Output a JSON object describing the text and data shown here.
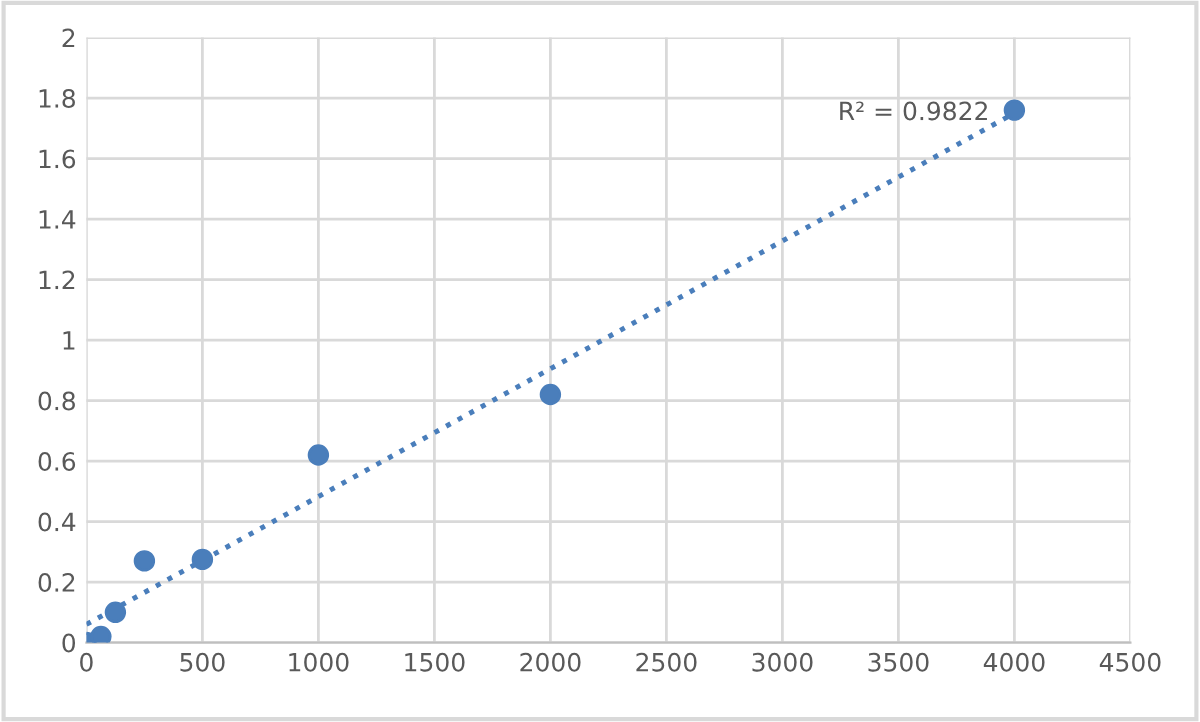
{
  "chart_data": {
    "type": "scatter",
    "x": [
      0,
      62.5,
      125,
      250,
      500,
      1000,
      2000,
      4000
    ],
    "series": [
      {
        "color": "#4a7ebb",
        "marker": "circle",
        "values": [
          0,
          0.02,
          0.1,
          0.27,
          0.275,
          0.62,
          0.82,
          1.76
        ]
      },
      {
        "type": "line",
        "color": "#4a7ebb",
        "line_style": "dotted",
        "marker": "none",
        "x": [
          0,
          4000
        ],
        "values": [
          0.06,
          1.75
        ]
      }
    ],
    "annotations": [
      "R² = 0.9822"
    ],
    "xlim": [
      0,
      4500
    ],
    "xticks": [
      0,
      500,
      1000,
      1500,
      2000,
      2500,
      3000,
      3500,
      4000,
      4500
    ],
    "ylim": [
      0,
      2
    ],
    "yticks": [
      0,
      0.2,
      0.4,
      0.6,
      0.8,
      1,
      1.2,
      1.4,
      1.6,
      1.8,
      2
    ],
    "grid": true,
    "legend": false
  }
}
